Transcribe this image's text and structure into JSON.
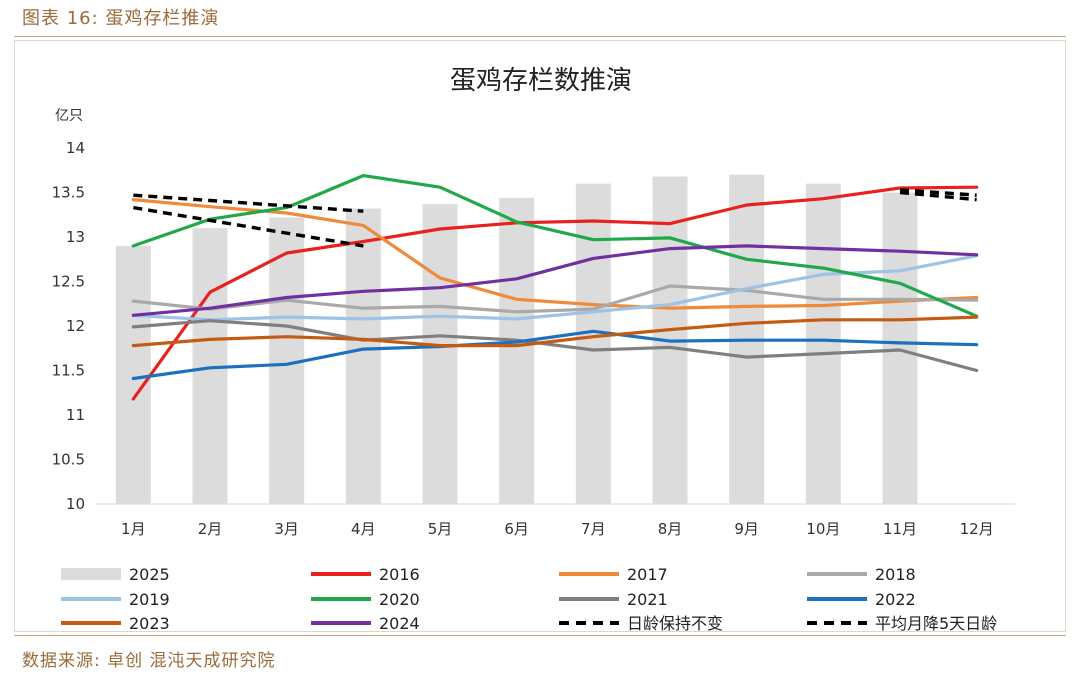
{
  "caption": "图表 16: 蛋鸡存栏推演",
  "source": "数据来源: 卓创 混沌天成研究院",
  "colors": {
    "2025": "#dcdcdc",
    "2016": "#e8211f",
    "2017": "#ee8a3a",
    "2018": "#a9a9a9",
    "2019": "#9dc3e6",
    "2020": "#21a84a",
    "2021": "#7f7f7f",
    "2022": "#1f6fbf",
    "2023": "#c55a11",
    "2024": "#7030a0",
    "proj": "#000000"
  },
  "chart_data": {
    "type": "bar+line",
    "title": "蛋鸡存栏数推演",
    "ylabel": "亿只",
    "ylim": [
      10,
      14
    ],
    "yticks": [
      "14",
      "13.5",
      "13",
      "12.5",
      "12",
      "11.5",
      "11",
      "10.5",
      "10"
    ],
    "ytick_values": [
      14,
      13.5,
      13,
      12.5,
      12,
      11.5,
      11,
      10.5,
      10
    ],
    "categories": [
      "1月",
      "2月",
      "3月",
      "4月",
      "5月",
      "6月",
      "7月",
      "8月",
      "9月",
      "10月",
      "11月",
      "12月"
    ],
    "bar_series": {
      "name": "2025",
      "values": [
        12.9,
        13.1,
        13.22,
        13.32,
        13.37,
        13.44,
        13.6,
        13.68,
        13.7,
        13.6,
        13.5
      ]
    },
    "series": [
      {
        "name": "2016",
        "values": [
          11.18,
          12.38,
          12.82,
          12.95,
          13.09,
          13.16,
          13.18,
          13.15,
          13.36,
          13.43,
          13.55,
          13.56
        ]
      },
      {
        "name": "2017",
        "values": [
          13.42,
          13.34,
          13.27,
          13.13,
          12.54,
          12.3,
          12.24,
          12.2,
          12.22,
          12.23,
          12.28,
          12.32
        ]
      },
      {
        "name": "2018",
        "values": [
          12.28,
          12.19,
          12.29,
          12.2,
          12.22,
          12.16,
          12.19,
          12.45,
          12.4,
          12.3,
          12.3,
          12.29
        ]
      },
      {
        "name": "2019",
        "values": [
          12.12,
          12.07,
          12.1,
          12.08,
          12.11,
          12.08,
          12.16,
          12.24,
          12.42,
          12.58,
          12.62,
          12.79
        ]
      },
      {
        "name": "2020",
        "values": [
          12.9,
          13.2,
          13.33,
          13.69,
          13.56,
          13.17,
          12.97,
          12.99,
          12.75,
          12.65,
          12.48,
          12.11
        ]
      },
      {
        "name": "2021",
        "values": [
          11.99,
          12.06,
          12.0,
          11.84,
          11.89,
          11.84,
          11.73,
          11.76,
          11.65,
          11.69,
          11.73,
          11.5
        ]
      },
      {
        "name": "2022",
        "values": [
          11.41,
          11.53,
          11.57,
          11.74,
          11.77,
          11.82,
          11.94,
          11.83,
          11.84,
          11.84,
          11.81,
          11.79
        ]
      },
      {
        "name": "2023",
        "values": [
          11.78,
          11.85,
          11.88,
          11.85,
          11.78,
          11.78,
          11.88,
          11.96,
          12.03,
          12.07,
          12.07,
          12.1
        ]
      },
      {
        "name": "2024",
        "values": [
          12.12,
          12.2,
          12.32,
          12.39,
          12.43,
          12.53,
          12.76,
          12.87,
          12.9,
          12.87,
          12.84,
          12.8
        ]
      }
    ],
    "projections": [
      {
        "name": "日龄保持不变",
        "segments": [
          {
            "x": [
              1,
              4
            ],
            "y": [
              13.47,
              13.29
            ]
          },
          {
            "x": [
              11,
              12
            ],
            "y": [
              13.53,
              13.47
            ]
          }
        ]
      },
      {
        "name": "平均月降5天日龄",
        "segments": [
          {
            "x": [
              1,
              4
            ],
            "y": [
              13.33,
              12.9
            ]
          },
          {
            "x": [
              11,
              12
            ],
            "y": [
              13.5,
              13.42
            ]
          }
        ]
      }
    ],
    "legend": [
      "2025",
      "2016",
      "2017",
      "2018",
      "2019",
      "2020",
      "2021",
      "2022",
      "2023",
      "2024",
      "日龄保持不变",
      "平均月降5天日龄"
    ]
  }
}
